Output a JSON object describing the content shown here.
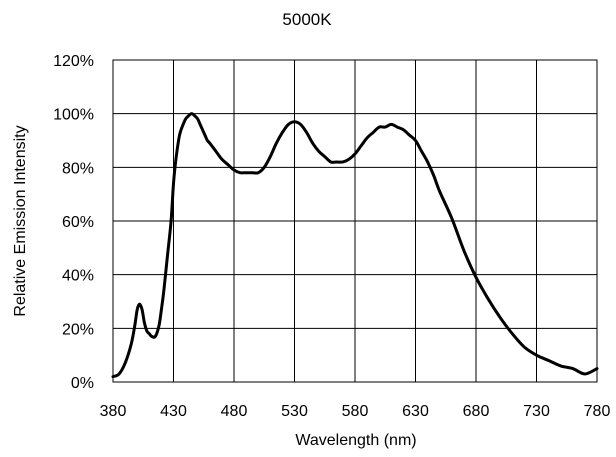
{
  "chart_data": {
    "type": "line",
    "title": "5000K",
    "xlabel": "Wavelength (nm)",
    "ylabel": "Relative Emission Intensity",
    "xlim": [
      380,
      780
    ],
    "ylim": [
      0,
      1.2
    ],
    "x_ticks": [
      380,
      430,
      480,
      530,
      580,
      630,
      680,
      730,
      780
    ],
    "y_ticks": [
      0,
      0.2,
      0.4,
      0.6,
      0.8,
      1.0,
      1.2
    ],
    "x_tick_labels": [
      "380",
      "430",
      "480",
      "530",
      "580",
      "630",
      "680",
      "730",
      "780"
    ],
    "y_tick_labels": [
      "0%",
      "20%",
      "40%",
      "60%",
      "80%",
      "100%",
      "120%"
    ],
    "grid": true,
    "legend": "none",
    "series": [
      {
        "color": "#000000",
        "x": [
          380,
          385,
          390,
          395,
          398,
          400,
          402,
          404,
          406,
          408,
          410,
          412,
          415,
          418,
          420,
          422,
          425,
          428,
          430,
          432,
          435,
          438,
          440,
          442,
          445,
          448,
          450,
          452,
          454,
          456,
          458,
          460,
          465,
          470,
          475,
          480,
          485,
          490,
          495,
          500,
          505,
          510,
          515,
          520,
          525,
          530,
          535,
          540,
          545,
          550,
          555,
          560,
          565,
          570,
          575,
          580,
          585,
          590,
          595,
          600,
          605,
          610,
          615,
          620,
          625,
          630,
          635,
          640,
          645,
          650,
          660,
          670,
          680,
          690,
          700,
          710,
          720,
          730,
          740,
          750,
          760,
          770,
          780
        ],
        "y": [
          0.02,
          0.03,
          0.07,
          0.14,
          0.21,
          0.27,
          0.29,
          0.27,
          0.22,
          0.19,
          0.18,
          0.17,
          0.17,
          0.21,
          0.27,
          0.34,
          0.47,
          0.6,
          0.74,
          0.83,
          0.92,
          0.96,
          0.98,
          0.99,
          1.0,
          0.99,
          0.98,
          0.96,
          0.94,
          0.92,
          0.9,
          0.89,
          0.86,
          0.83,
          0.81,
          0.79,
          0.78,
          0.78,
          0.78,
          0.78,
          0.8,
          0.84,
          0.89,
          0.93,
          0.96,
          0.97,
          0.96,
          0.93,
          0.89,
          0.86,
          0.84,
          0.82,
          0.82,
          0.82,
          0.83,
          0.85,
          0.88,
          0.91,
          0.93,
          0.95,
          0.95,
          0.96,
          0.95,
          0.94,
          0.92,
          0.9,
          0.86,
          0.82,
          0.77,
          0.71,
          0.61,
          0.49,
          0.39,
          0.31,
          0.24,
          0.18,
          0.13,
          0.1,
          0.08,
          0.06,
          0.05,
          0.03,
          0.05
        ]
      }
    ]
  }
}
